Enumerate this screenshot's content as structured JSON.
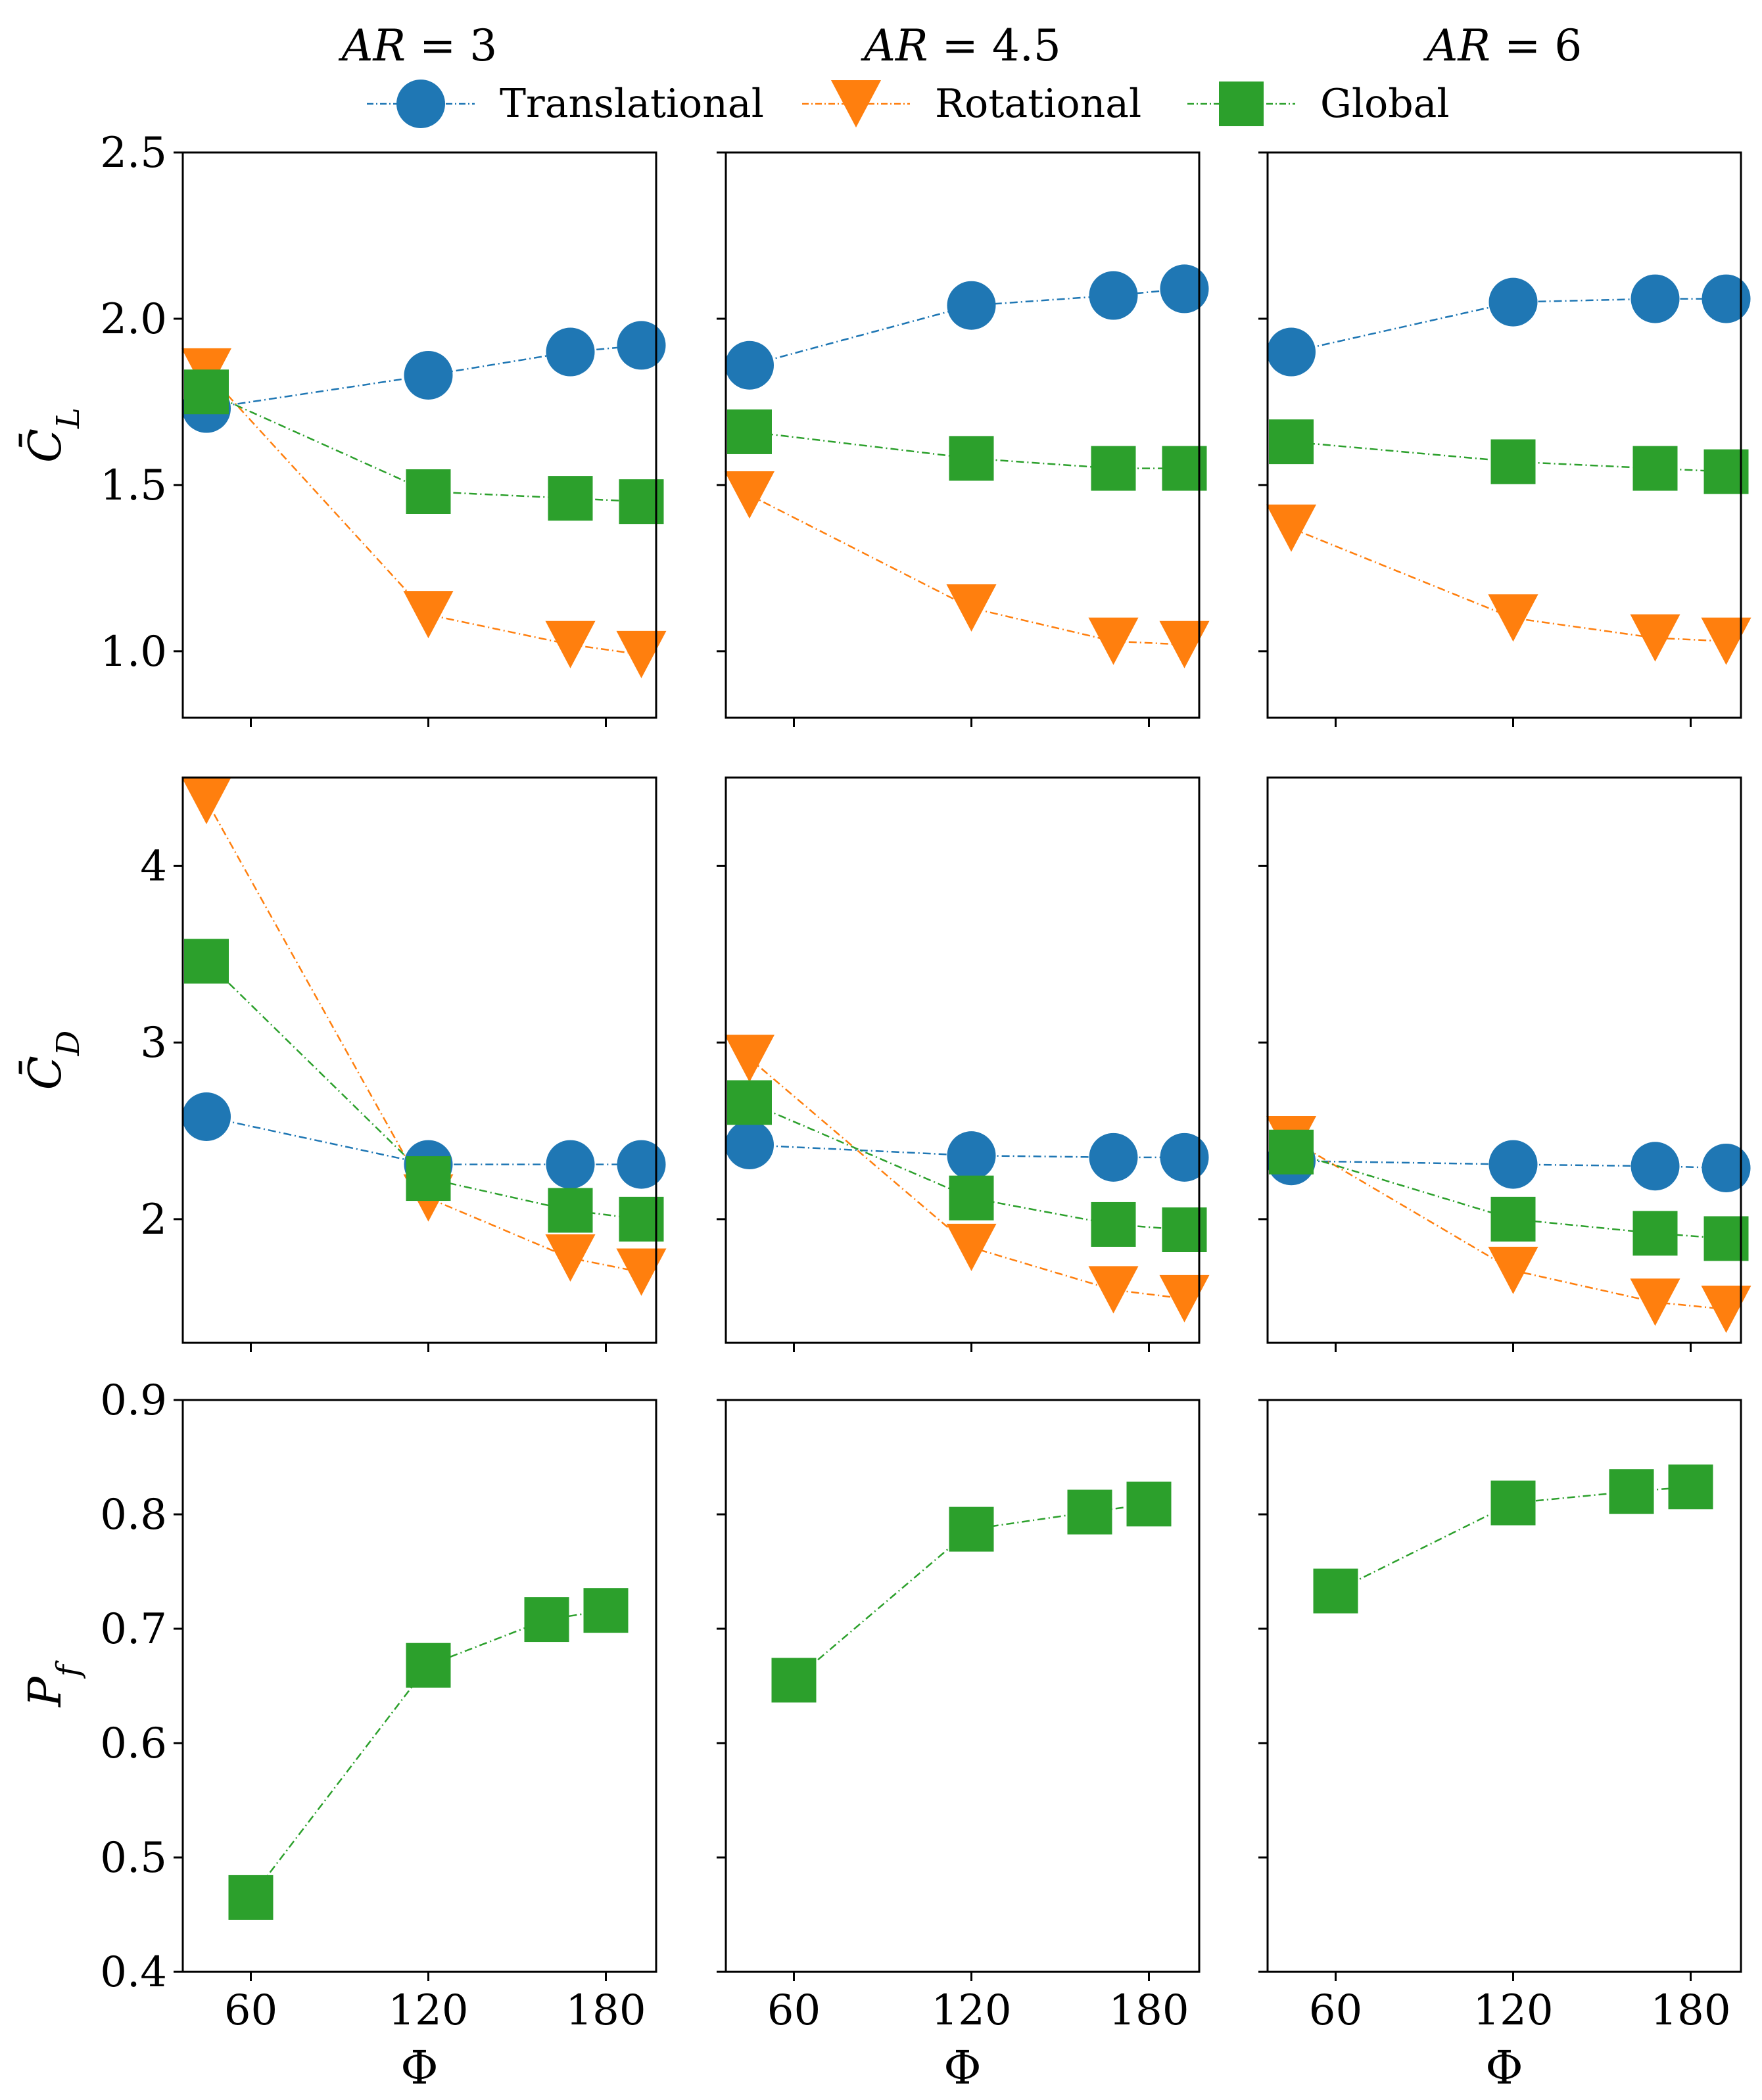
{
  "chart_data": {
    "type": "scatter",
    "layout": "3x3 grid",
    "columns": [
      "AR = 3",
      "AR = 4.5",
      "AR = 6"
    ],
    "column_titles": [
      {
        "var": "AR",
        "eq": " = 3"
      },
      {
        "var": "AR",
        "eq": " = 4.5"
      },
      {
        "var": "AR",
        "eq": " = 6"
      }
    ],
    "legend": [
      "Translational",
      "Rotational",
      "Global"
    ],
    "colors": {
      "Translational": "#1f77b4",
      "Rotational": "#ff7f0e",
      "Global": "#2ca02c"
    },
    "xlabel": "Φ",
    "xlim": [
      37,
      197
    ],
    "xticks": [
      60,
      120,
      180
    ],
    "xtick_labels": [
      "60",
      "120",
      "180"
    ],
    "rows": [
      {
        "ylabel": "C̄_L",
        "ylabel_main": "C̄",
        "ylabel_sub": "L",
        "ylim": [
          0.8,
          2.5
        ],
        "yticks": [
          1.0,
          1.5,
          2.0,
          2.5
        ],
        "ytick_labels": [
          "1.0",
          "1.5",
          "2.0",
          "2.5"
        ],
        "x": [
          45,
          120,
          168,
          192
        ],
        "panels": [
          {
            "Translational": [
              1.73,
              1.83,
              1.9,
              1.92
            ],
            "Rotational": [
              1.84,
              1.11,
              1.02,
              0.99
            ],
            "Global": [
              1.78,
              1.48,
              1.46,
              1.45
            ]
          },
          {
            "Translational": [
              1.86,
              2.04,
              2.07,
              2.09
            ],
            "Rotational": [
              1.47,
              1.13,
              1.03,
              1.02
            ],
            "Global": [
              1.66,
              1.58,
              1.55,
              1.55
            ]
          },
          {
            "Translational": [
              1.9,
              2.05,
              2.06,
              2.06
            ],
            "Rotational": [
              1.37,
              1.1,
              1.04,
              1.03
            ],
            "Global": [
              1.63,
              1.57,
              1.55,
              1.54
            ]
          }
        ]
      },
      {
        "ylabel": "C̄_D",
        "ylabel_main": "C̄",
        "ylabel_sub": "D",
        "ylim": [
          1.3,
          4.5
        ],
        "yticks": [
          2,
          3,
          4
        ],
        "ytick_labels": [
          "2",
          "3",
          "4"
        ],
        "x": [
          45,
          120,
          168,
          192
        ],
        "panels": [
          {
            "Translational": [
              2.58,
              2.31,
              2.31,
              2.31
            ],
            "Rotational": [
              4.37,
              2.12,
              1.78,
              1.7
            ],
            "Global": [
              3.46,
              2.23,
              2.05,
              2.0
            ]
          },
          {
            "Translational": [
              2.42,
              2.36,
              2.35,
              2.35
            ],
            "Rotational": [
              2.91,
              1.84,
              1.6,
              1.55
            ],
            "Global": [
              2.66,
              2.12,
              1.97,
              1.94
            ]
          },
          {
            "Translational": [
              2.33,
              2.31,
              2.3,
              2.29
            ],
            "Rotational": [
              2.45,
              1.71,
              1.53,
              1.49
            ],
            "Global": [
              2.38,
              2.0,
              1.92,
              1.89
            ]
          }
        ]
      },
      {
        "ylabel": "P_f",
        "ylabel_main": "P",
        "ylabel_sub": "f",
        "ylim": [
          0.4,
          0.9
        ],
        "yticks": [
          0.4,
          0.5,
          0.6,
          0.7,
          0.8,
          0.9
        ],
        "ytick_labels": [
          "0.4",
          "0.5",
          "0.6",
          "0.7",
          "0.8",
          "0.9"
        ],
        "x": [
          60,
          120,
          160,
          180
        ],
        "panels": [
          {
            "Global": [
              0.465,
              0.668,
              0.708,
              0.716
            ]
          },
          {
            "Global": [
              0.655,
              0.787,
              0.802,
              0.809
            ]
          },
          {
            "Global": [
              0.733,
              0.81,
              0.82,
              0.824
            ]
          }
        ]
      }
    ]
  }
}
